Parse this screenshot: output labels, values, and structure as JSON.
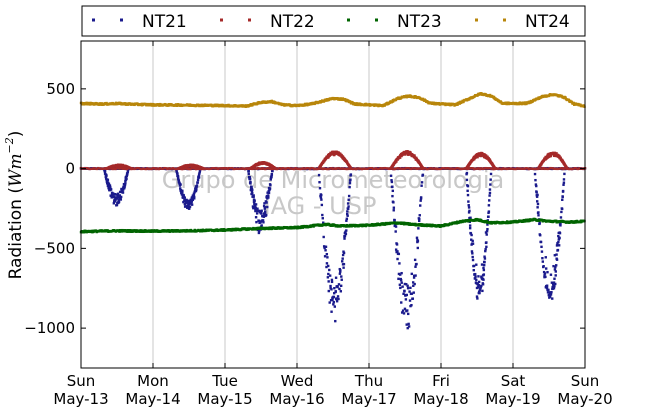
{
  "chart_data": {
    "type": "scatter",
    "ylabel_prefix": "Radiation (",
    "ylabel_math": "Wm",
    "ylabel_exp": "−2",
    "ylabel_suffix": ")",
    "ylim": [
      -1250,
      800
    ],
    "yticks": [
      500,
      0,
      -500,
      -1000
    ],
    "ytick_labels": [
      "500",
      "0",
      "−500",
      "−1000"
    ],
    "xlim": [
      0,
      7
    ],
    "xticks": [
      {
        "pos": 0,
        "day": "Sun",
        "date": "May-13"
      },
      {
        "pos": 1,
        "day": "Mon",
        "date": "May-14"
      },
      {
        "pos": 2,
        "day": "Tue",
        "date": "May-15"
      },
      {
        "pos": 3,
        "day": "Wed",
        "date": "May-16"
      },
      {
        "pos": 4,
        "day": "Thu",
        "date": "May-17"
      },
      {
        "pos": 5,
        "day": "Fri",
        "date": "May-18"
      },
      {
        "pos": 6,
        "day": "Sat",
        "date": "May-19"
      },
      {
        "pos": 7,
        "day": "Sun",
        "date": "May-20"
      }
    ],
    "grid": "x",
    "zero_line": true,
    "legend_position": "top",
    "watermark": [
      "Grupo de Micrometeorologia",
      "IAG - USP"
    ],
    "series": [
      {
        "name": "NT21",
        "color": "#1a1a8c",
        "days": [
          {
            "start": 0.32,
            "end": 0.66,
            "min": -200,
            "noise": 40
          },
          {
            "start": 1.32,
            "end": 1.66,
            "min": -230,
            "noise": 30
          },
          {
            "start": 2.32,
            "end": 2.66,
            "min": -330,
            "noise": 80
          },
          {
            "start": 3.3,
            "end": 3.75,
            "min": -850,
            "noise": 120
          },
          {
            "start": 4.3,
            "end": 4.75,
            "min": -900,
            "noise": 120
          },
          {
            "start": 5.35,
            "end": 5.7,
            "min": -760,
            "noise": 30
          },
          {
            "start": 6.3,
            "end": 6.72,
            "min": -770,
            "noise": 40
          }
        ]
      },
      {
        "name": "NT22",
        "color": "#a52a2a",
        "days": [
          {
            "start": 0.35,
            "end": 0.7,
            "max": 20
          },
          {
            "start": 1.35,
            "end": 1.7,
            "max": 20
          },
          {
            "start": 2.35,
            "end": 2.7,
            "max": 35
          },
          {
            "start": 3.3,
            "end": 3.75,
            "max": 100
          },
          {
            "start": 4.3,
            "end": 4.75,
            "max": 100
          },
          {
            "start": 5.35,
            "end": 5.75,
            "max": 90
          },
          {
            "start": 6.35,
            "end": 6.75,
            "max": 95
          }
        ]
      },
      {
        "name": "NT23",
        "color": "#006400",
        "points": [
          [
            0,
            -395
          ],
          [
            0.5,
            -390
          ],
          [
            1,
            -392
          ],
          [
            1.5,
            -390
          ],
          [
            2,
            -385
          ],
          [
            2.5,
            -375
          ],
          [
            3,
            -370
          ],
          [
            3.4,
            -350
          ],
          [
            3.6,
            -360
          ],
          [
            4,
            -355
          ],
          [
            4.4,
            -340
          ],
          [
            4.6,
            -350
          ],
          [
            5,
            -360
          ],
          [
            5.3,
            -330
          ],
          [
            5.5,
            -320
          ],
          [
            5.7,
            -340
          ],
          [
            6,
            -335
          ],
          [
            6.3,
            -320
          ],
          [
            6.5,
            -330
          ],
          [
            6.8,
            -335
          ],
          [
            7,
            -330
          ]
        ]
      },
      {
        "name": "NT24",
        "color": "#b8860b",
        "points": [
          [
            0,
            408
          ],
          [
            0.3,
            405
          ],
          [
            0.5,
            408
          ],
          [
            0.7,
            404
          ],
          [
            1,
            400
          ],
          [
            1.5,
            398
          ],
          [
            2,
            395
          ],
          [
            2.3,
            392
          ],
          [
            2.5,
            415
          ],
          [
            2.65,
            420
          ],
          [
            2.8,
            400
          ],
          [
            3,
            395
          ],
          [
            3.2,
            405
          ],
          [
            3.5,
            440
          ],
          [
            3.65,
            435
          ],
          [
            3.8,
            405
          ],
          [
            4,
            400
          ],
          [
            4.2,
            395
          ],
          [
            4.4,
            440
          ],
          [
            4.55,
            455
          ],
          [
            4.7,
            445
          ],
          [
            4.85,
            410
          ],
          [
            5,
            405
          ],
          [
            5.2,
            400
          ],
          [
            5.4,
            440
          ],
          [
            5.55,
            470
          ],
          [
            5.7,
            455
          ],
          [
            5.85,
            410
          ],
          [
            6,
            408
          ],
          [
            6.2,
            410
          ],
          [
            6.4,
            450
          ],
          [
            6.55,
            465
          ],
          [
            6.7,
            450
          ],
          [
            6.85,
            405
          ],
          [
            7,
            392
          ]
        ]
      }
    ]
  }
}
